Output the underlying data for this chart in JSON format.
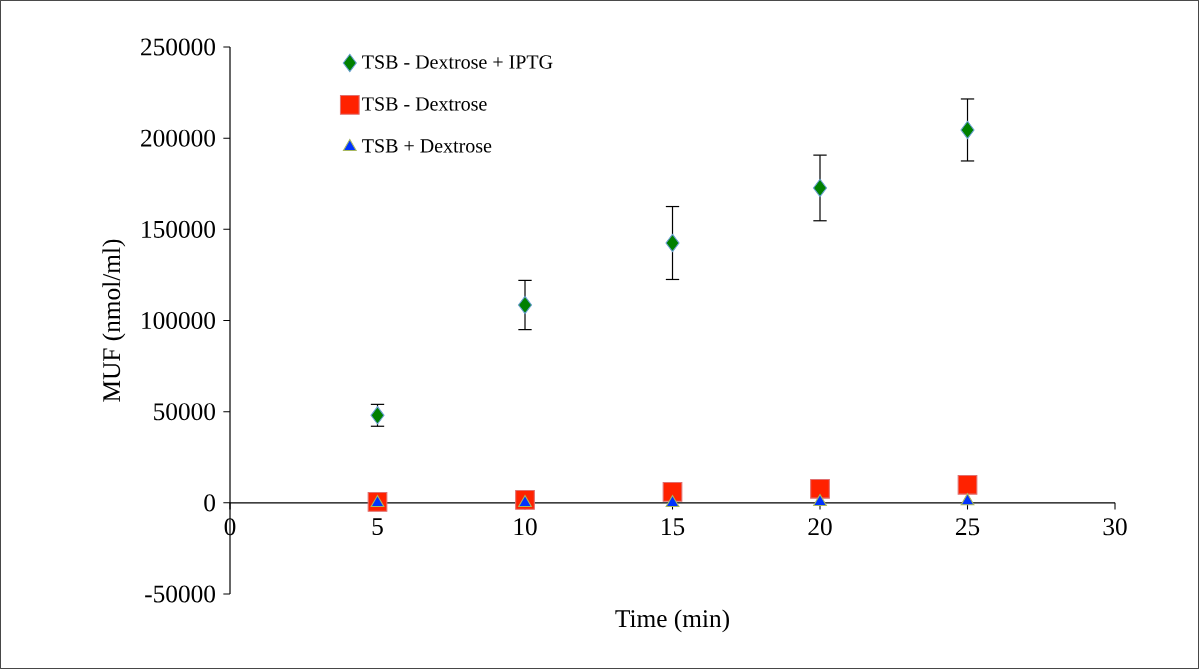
{
  "chart_data": {
    "type": "scatter",
    "xlabel": "Time (min)",
    "ylabel": "MUF (nmol/ml)",
    "x": [
      5,
      10,
      15,
      20,
      25
    ],
    "series": [
      {
        "name": "TSB - Dextrose + IPTG",
        "color": "#008000",
        "marker": "diamond",
        "values": [
          48000,
          108500,
          142500,
          172700,
          204500
        ],
        "errors": [
          6000,
          13500,
          20000,
          18000,
          17000
        ]
      },
      {
        "name": "TSB - Dextrose",
        "color": "#ff2200",
        "marker": "square",
        "values": [
          500,
          1600,
          6000,
          7700,
          9900
        ]
      },
      {
        "name": "TSB + Dextrose",
        "color": "#0033ff",
        "marker": "triangle",
        "values": [
          0,
          0,
          0,
          500,
          1000
        ]
      }
    ],
    "xlim": [
      0,
      30
    ],
    "xticks": [
      0,
      5,
      10,
      15,
      20,
      25,
      30
    ],
    "ylim": [
      -50000,
      250000
    ],
    "yticks": [
      -50000,
      0,
      50000,
      100000,
      150000,
      200000,
      250000
    ],
    "grid": false,
    "legend": "top left"
  }
}
